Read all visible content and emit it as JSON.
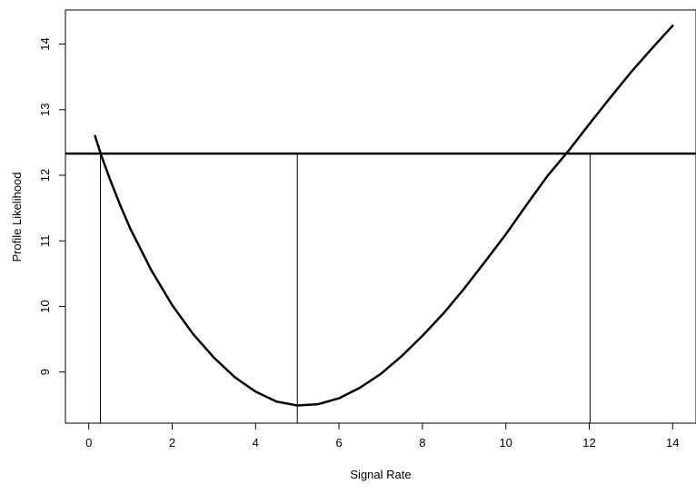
{
  "chart_data": {
    "type": "line",
    "xlabel": "Signal Rate",
    "ylabel": "Profile Likelihood",
    "xlim": [
      -0.56,
      14.56
    ],
    "ylim": [
      8.22,
      14.52
    ],
    "x_ticks": [
      0,
      2,
      4,
      6,
      8,
      10,
      12,
      14
    ],
    "y_ticks": [
      9,
      10,
      11,
      12,
      13,
      14
    ],
    "grid": false,
    "series": [
      {
        "x": [
          0.15,
          0.3,
          0.5,
          0.75,
          1.0,
          1.5,
          2.0,
          2.5,
          3.0,
          3.5,
          4.0,
          4.5,
          5.0,
          5.5,
          6.0,
          6.5,
          7.0,
          7.5,
          8.0,
          8.5,
          9.0,
          9.5,
          10.0,
          10.5,
          11.0,
          11.5,
          12.0,
          12.5,
          13.0,
          13.5,
          14.0
        ],
        "y": [
          12.6,
          12.3,
          11.95,
          11.55,
          11.18,
          10.55,
          10.02,
          9.58,
          9.22,
          8.92,
          8.7,
          8.55,
          8.49,
          8.51,
          8.6,
          8.76,
          8.97,
          9.24,
          9.55,
          9.89,
          10.27,
          10.68,
          11.1,
          11.55,
          11.99,
          12.37,
          12.78,
          13.18,
          13.57,
          13.93,
          14.28
        ]
      }
    ],
    "reference_lines": {
      "horizontal_y": 12.33,
      "vertical_x": [
        0.28,
        5.0,
        12.02
      ]
    }
  }
}
